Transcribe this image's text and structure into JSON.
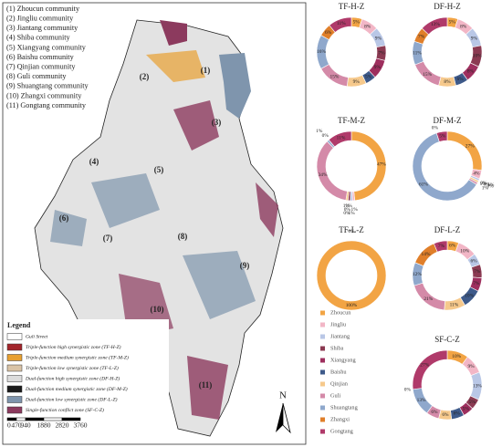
{
  "map": {
    "communities": [
      "(1) Zhoucun community",
      "(2) Jingliu community",
      "(3) Jiantang community",
      "(4) Shiba community",
      "(5) Xiangyang community",
      "(6) Baishu community",
      "(7) Qinjian community",
      "(8) Guli community",
      "(9) Shuangtang community",
      "(10) Zhangxi community",
      "(11) Gongtang community"
    ],
    "region_labels": [
      "(1)",
      "(2)",
      "(3)",
      "(4)",
      "(5)",
      "(6)",
      "(7)",
      "(8)",
      "(9)",
      "(10)",
      "(11)"
    ],
    "legend": {
      "title": "Legend",
      "items": [
        {
          "label": "Guli Street",
          "color": "#ffffff"
        },
        {
          "label": "Triple-function high synergistic zone (TF-H-Z)",
          "color": "#a3252b"
        },
        {
          "label": "Triple-function medium synergistic zone (TF-M-Z)",
          "color": "#e8a030"
        },
        {
          "label": "Triple-function low synergistic zone (TF-L-Z)",
          "color": "#d9c3a6"
        },
        {
          "label": "Dual-function high synergistic zone (DF-H-Z)",
          "color": "#dcdcdc"
        },
        {
          "label": "Dual-function medium synergistic zone (DF-M-Z)",
          "color": "#1a1a1a"
        },
        {
          "label": "Dual-function low synergistic zone (DF-L-Z)",
          "color": "#7f95ad"
        },
        {
          "label": "Single-function conflict zone (SF-C-Z)",
          "color": "#8c3a5e"
        }
      ]
    },
    "scale": [
      "0",
      "470",
      "940",
      "1880",
      "2820",
      "3760"
    ],
    "north": "N"
  },
  "chart_data": [
    {
      "type": "pie",
      "title": "TF-H-Z",
      "categories": [
        "Zhoucun",
        "Jingliu",
        "Jiantang",
        "Shiba",
        "Xiangyang",
        "Baishu",
        "Qinjian",
        "Guli",
        "Shuangtang",
        "Zhangxi",
        "Gongtang"
      ],
      "colors": [
        "#f2a444",
        "#f2b6c6",
        "#b9c7e6",
        "#8b3a52",
        "#9e2f5e",
        "#3e5a8a",
        "#f6c98c",
        "#d48aa8",
        "#8fa8cc",
        "#e07f2a",
        "#b03a6a"
      ],
      "values": [
        5,
        8,
        9,
        7,
        9,
        5,
        9,
        15,
        16,
        6,
        11
      ],
      "value_labels": [
        "5%",
        "8%",
        "9%",
        "7%",
        "9%",
        "5%",
        "9%",
        "15%",
        "16%",
        "6%",
        "11%"
      ]
    },
    {
      "type": "pie",
      "title": "DF-H-Z",
      "categories": [
        "Zhoucun",
        "Jingliu",
        "Jiantang",
        "Shiba",
        "Xiangyang",
        "Baishu",
        "Qinjian",
        "Guli",
        "Shuangtang",
        "Zhangxi",
        "Gongtang"
      ],
      "colors": [
        "#f2a444",
        "#f2b6c6",
        "#b9c7e6",
        "#8b3a52",
        "#9e2f5e",
        "#3e5a8a",
        "#f6c98c",
        "#d48aa8",
        "#8fa8cc",
        "#e07f2a",
        "#b03a6a"
      ],
      "values": [
        5,
        8,
        9,
        10,
        8,
        6,
        8,
        15,
        11,
        7,
        13
      ],
      "value_labels": [
        "5%",
        "8%",
        "9%",
        "10%",
        "8%",
        "6%",
        "8%",
        "15%",
        "11%",
        "7%",
        "13%"
      ]
    },
    {
      "type": "pie",
      "title": "TF-M-Z",
      "categories": [
        "Zhoucun",
        "Jingliu",
        "Jiantang",
        "Shiba",
        "Xiangyang",
        "Baishu",
        "Qinjian",
        "Guli",
        "Shuangtang",
        "Zhangxi",
        "Gongtang"
      ],
      "colors": [
        "#f2a444",
        "#f2b6c6",
        "#b9c7e6",
        "#8b3a52",
        "#9e2f5e",
        "#3e5a8a",
        "#f6c98c",
        "#d48aa8",
        "#8fa8cc",
        "#e07f2a",
        "#b03a6a"
      ],
      "values": [
        47,
        1,
        1,
        1,
        0,
        0,
        1,
        34,
        1,
        0,
        11
      ],
      "value_labels": [
        "47%",
        "1%",
        "1%",
        "1%",
        "0%",
        "0%",
        "1%",
        "34%",
        "1%",
        "0%",
        "11%"
      ]
    },
    {
      "type": "pie",
      "title": "DF-M-Z",
      "categories": [
        "Zhoucun",
        "Jingliu",
        "Jiantang",
        "Shiba",
        "Xiangyang",
        "Baishu",
        "Qinjian",
        "Guli",
        "Shuangtang",
        "Zhangxi",
        "Gongtang"
      ],
      "colors": [
        "#f2a444",
        "#f2b6c6",
        "#b9c7e6",
        "#8b3a52",
        "#9e2f5e",
        "#3e5a8a",
        "#f6c98c",
        "#d48aa8",
        "#8fa8cc",
        "#e07f2a",
        "#b03a6a"
      ],
      "values": [
        27,
        4,
        1,
        0,
        0,
        0,
        1,
        1,
        61,
        0,
        5
      ],
      "value_labels": [
        "27%",
        "4%",
        "1%",
        "0%",
        "0%",
        "0%",
        "1%",
        "1%",
        "61%",
        "0%",
        "5%"
      ]
    },
    {
      "type": "pie",
      "title": "TF-L-Z",
      "categories": [
        "Zhoucun",
        "Gongtang"
      ],
      "colors": [
        "#f2a444",
        "#b03a6a"
      ],
      "values": [
        100,
        0
      ],
      "value_labels": [
        "100%",
        "0%"
      ]
    },
    {
      "type": "pie",
      "title": "DF-L-Z",
      "categories": [
        "Zhoucun",
        "Jingliu",
        "Jiantang",
        "Shiba",
        "Xiangyang",
        "Baishu",
        "Qinjian",
        "Guli",
        "Shuangtang",
        "Zhangxi",
        "Gongtang"
      ],
      "colors": [
        "#f2a444",
        "#f2b6c6",
        "#b9c7e6",
        "#8b3a52",
        "#9e2f5e",
        "#3e5a8a",
        "#f6c98c",
        "#d48aa8",
        "#8fa8cc",
        "#e07f2a",
        "#b03a6a"
      ],
      "values": [
        6,
        10,
        6,
        7,
        7,
        10,
        11,
        21,
        12,
        14,
        7
      ],
      "value_labels": [
        "6%",
        "10%",
        "6%",
        "7%",
        "7%",
        "10%",
        "11%",
        "21%",
        "12%",
        "14%",
        "7%"
      ]
    },
    {
      "type": "pie",
      "title": "SF-C-Z",
      "categories": [
        "Zhoucun",
        "Jingliu",
        "Jiantang",
        "Shiba",
        "Xiangyang",
        "Baishu",
        "Qinjian",
        "Guli",
        "Shuangtang",
        "Zhangxi",
        "Gongtang"
      ],
      "colors": [
        "#f2a444",
        "#f2b6c6",
        "#b9c7e6",
        "#8b3a52",
        "#9e2f5e",
        "#3e5a8a",
        "#f6c98c",
        "#d48aa8",
        "#8fa8cc",
        "#e07f2a",
        "#b03a6a"
      ],
      "values": [
        10,
        9,
        13,
        5,
        5,
        6,
        6,
        6,
        13,
        0,
        27
      ],
      "value_labels": [
        "10%",
        "9%",
        "13%",
        "5%",
        "5%",
        "6%",
        "6%",
        "6%",
        "13%",
        "0%",
        "27%"
      ]
    }
  ]
}
